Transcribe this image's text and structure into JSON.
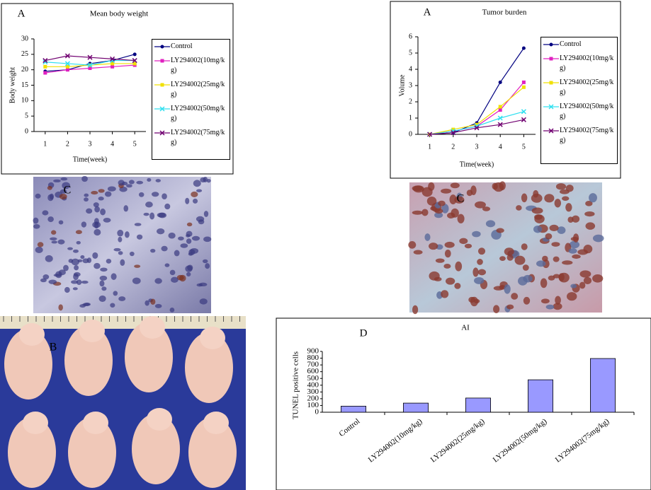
{
  "chart_data": [
    {
      "type": "line",
      "label": "A",
      "title": "Mean body weight",
      "xlabel": "Time(week)",
      "ylabel": "Body weight",
      "x": [
        1,
        2,
        3,
        4,
        5
      ],
      "xlim": [
        0.5,
        5.5
      ],
      "xticks": [
        1,
        2,
        3,
        4,
        5
      ],
      "ylim": [
        0,
        30
      ],
      "yticks": [
        0,
        5,
        10,
        15,
        20,
        25,
        30
      ],
      "series": [
        {
          "name": "Control",
          "color": "#000080",
          "values": [
            19.5,
            20,
            22,
            23,
            25
          ]
        },
        {
          "name": "LY294002(10mg/kg)",
          "color": "#e020c0",
          "values": [
            19,
            20,
            20.5,
            21,
            21.5
          ]
        },
        {
          "name": "LY294002(25mg/kg)",
          "color": "#f0e000",
          "values": [
            21,
            21,
            21.5,
            22,
            22
          ]
        },
        {
          "name": "LY294002(50mg/kg)",
          "color": "#30e0f0",
          "values": [
            22.5,
            22,
            21.5,
            23,
            23
          ]
        },
        {
          "name": "LY294002(75mg/kg)",
          "color": "#700070",
          "values": [
            23,
            24.5,
            24,
            23.5,
            23
          ]
        }
      ]
    },
    {
      "type": "line",
      "label": "A",
      "title": "Tumor burden",
      "xlabel": "Time(week)",
      "ylabel": "Volume",
      "x": [
        1,
        2,
        3,
        4,
        5
      ],
      "xlim": [
        0.5,
        5.5
      ],
      "xticks": [
        1,
        2,
        3,
        4,
        5
      ],
      "ylim": [
        0,
        6
      ],
      "yticks": [
        0,
        1,
        2,
        3,
        4,
        5,
        6
      ],
      "series": [
        {
          "name": "Control",
          "color": "#000080",
          "values": [
            0,
            0.1,
            0.7,
            3.2,
            5.3
          ]
        },
        {
          "name": "LY294002(10mg/kg)",
          "color": "#e020c0",
          "values": [
            0,
            0.2,
            0.5,
            1.5,
            3.2
          ]
        },
        {
          "name": "LY294002(25mg/kg)",
          "color": "#f0e000",
          "values": [
            0,
            0.3,
            0.6,
            1.7,
            2.9
          ]
        },
        {
          "name": "LY294002(50mg/kg)",
          "color": "#30e0f0",
          "values": [
            0,
            0.2,
            0.5,
            1.0,
            1.4
          ]
        },
        {
          "name": "LY294002(75mg/kg)",
          "color": "#700070",
          "values": [
            0,
            0.1,
            0.4,
            0.6,
            0.9
          ]
        }
      ]
    },
    {
      "type": "bar",
      "label": "D",
      "title": "AI",
      "ylabel": "TUNEL positive cells",
      "categories": [
        "Control",
        "LY294002(10mg/kg)",
        "LY294002(25mg/kg)",
        "LY294002(50mg/kg)",
        "LY294002(75mg/kg)"
      ],
      "values": [
        90,
        135,
        210,
        480,
        795
      ],
      "color": "#9999ff",
      "ylim": [
        0,
        900
      ],
      "yticks": [
        0,
        100,
        200,
        300,
        400,
        500,
        600,
        700,
        800,
        900
      ]
    }
  ],
  "photo_labels": [
    "C",
    "C",
    "B"
  ]
}
